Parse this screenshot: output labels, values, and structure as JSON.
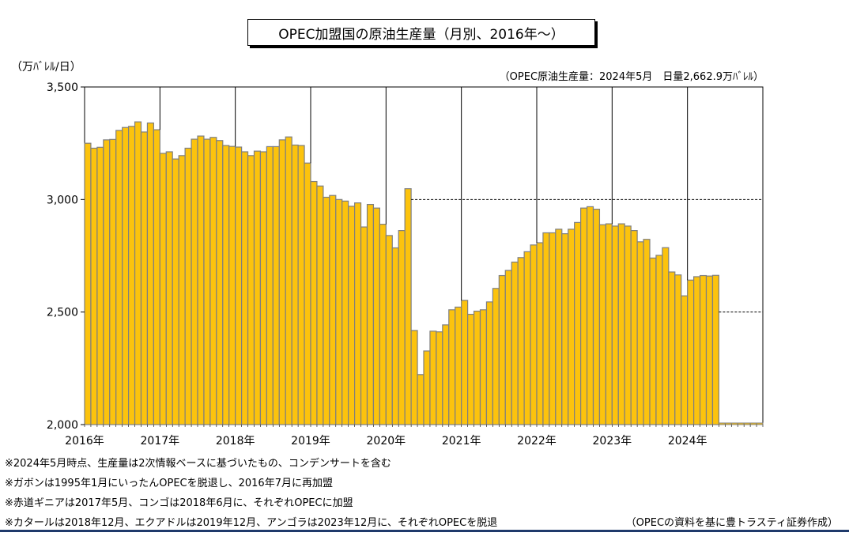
{
  "chart_data": {
    "type": "bar",
    "title": "OPEC加盟国の原油生産量（月別、2016年～）",
    "unit": "（万ﾊﾞﾚﾙ/日）",
    "subtitle": "（OPEC原油生産量：2024年5月　日量2,662.9万ﾊﾞﾚﾙ）",
    "ylim": [
      2000,
      3500
    ],
    "yticks": [
      "2,000",
      "2,500",
      "3,000",
      "3,500"
    ],
    "ytick_values": [
      2000,
      2500,
      3000,
      3500
    ],
    "x_year_labels": [
      "2016年",
      "2017年",
      "2018年",
      "2019年",
      "2020年",
      "2021年",
      "2022年",
      "2023年",
      "2024年"
    ],
    "period_start": "2016-01",
    "months_shown": 108,
    "bar_color": "#FCC30D",
    "bar_edge_color": "#7F7F7F",
    "reference_lines": [
      3000,
      2500
    ],
    "values": [
      3250,
      3228,
      3232,
      3265,
      3267,
      3307,
      3320,
      3325,
      3345,
      3300,
      3340,
      3310,
      3205,
      3212,
      3180,
      3195,
      3228,
      3268,
      3282,
      3268,
      3276,
      3262,
      3240,
      3236,
      3233,
      3212,
      3195,
      3215,
      3212,
      3235,
      3235,
      3265,
      3278,
      3242,
      3240,
      3162,
      3080,
      3060,
      3010,
      3018,
      3000,
      2993,
      2970,
      2985,
      2878,
      2978,
      2962,
      2890,
      2840,
      2785,
      2862,
      3048,
      2418,
      2222,
      2327,
      2415,
      2412,
      2443,
      2510,
      2522,
      2552,
      2490,
      2504,
      2510,
      2545,
      2605,
      2662,
      2685,
      2722,
      2742,
      2768,
      2798,
      2808,
      2852,
      2852,
      2868,
      2848,
      2868,
      2898,
      2962,
      2968,
      2957,
      2888,
      2892,
      2882,
      2892,
      2882,
      2862,
      2812,
      2823,
      2740,
      2752,
      2786,
      2678,
      2665,
      2572,
      2642,
      2657,
      2662,
      2660,
      2663
    ]
  },
  "notes": [
    "※2024年5月時点、生産量は2次情報ベースに基づいたもの、コンデンサートを含む",
    "※ガボンは1995年1月にいったんOPECを脱退し、2016年7月に再加盟",
    "※赤道ギニアは2017年5月、コンゴは2018年6月に、それぞれOPECに加盟",
    "※カタールは2018年12月、エクアドルは2019年12月、アンゴラは2023年12月に、それぞれOPECを脱退"
  ],
  "source": "（OPECの資料を基に豊トラスティ証券作成）"
}
